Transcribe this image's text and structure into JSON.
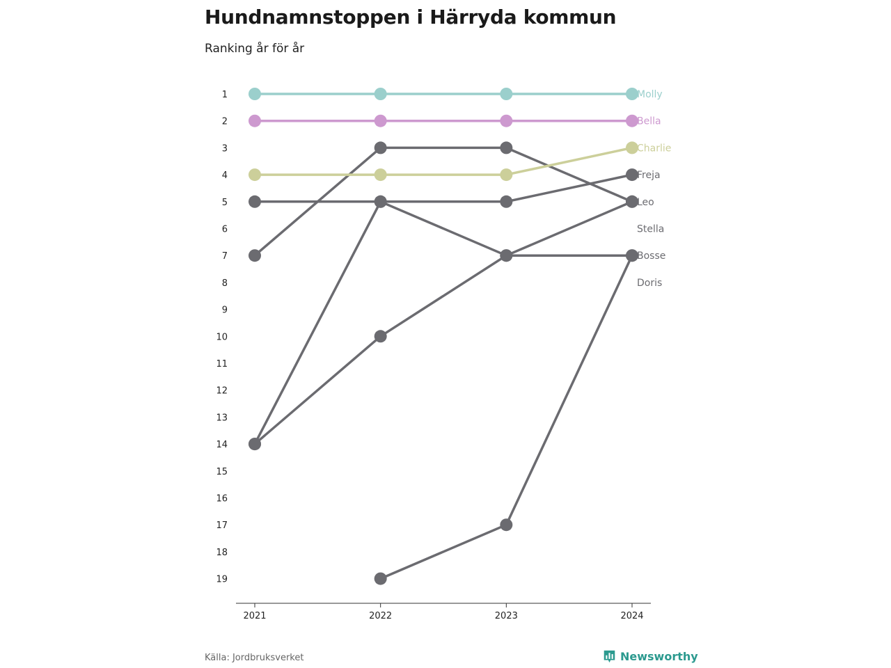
{
  "title": "Hundnamnstoppen i Härryda kommun",
  "subtitle": "Ranking år för år",
  "source": "Källa: Jordbruksverket",
  "brand": {
    "name": "Newsworthy",
    "icon": "newsworthy-logo-icon",
    "color": "#2c9a8f"
  },
  "chart_data": {
    "type": "line",
    "chart_kind": "bump",
    "x": [
      "2021",
      "2022",
      "2023",
      "2024"
    ],
    "y_ticks": [
      "1",
      "2",
      "3",
      "4",
      "5",
      "6",
      "7",
      "8",
      "9",
      "10",
      "11",
      "12",
      "13",
      "14",
      "15",
      "16",
      "17",
      "18",
      "19"
    ],
    "ylim": [
      1,
      19
    ],
    "y_reversed": true,
    "grid": false,
    "legend": "direct labels at right end",
    "series": [
      {
        "name": "Molly",
        "color": "#9bcfcc",
        "values": [
          1,
          1,
          1,
          1
        ]
      },
      {
        "name": "Bella",
        "color": "#cd99cf",
        "values": [
          2,
          2,
          2,
          2
        ]
      },
      {
        "name": "Charlie",
        "color": "#cccf9a",
        "values": [
          4,
          4,
          4,
          3
        ]
      },
      {
        "name": "Freja",
        "color": "#6b6b70",
        "values": [
          5,
          5,
          5,
          4
        ]
      },
      {
        "name": "Leo",
        "color": "#6b6b70",
        "values": [
          7,
          3,
          3,
          5
        ]
      },
      {
        "name": "Stella",
        "color": "#6b6b70",
        "values": [
          14,
          10,
          7,
          5
        ]
      },
      {
        "name": "Bosse",
        "color": "#6b6b70",
        "values": [
          14,
          5,
          7,
          7
        ]
      },
      {
        "name": "Doris",
        "color": "#6b6b70",
        "values": [
          null,
          19,
          17,
          7
        ]
      }
    ]
  }
}
